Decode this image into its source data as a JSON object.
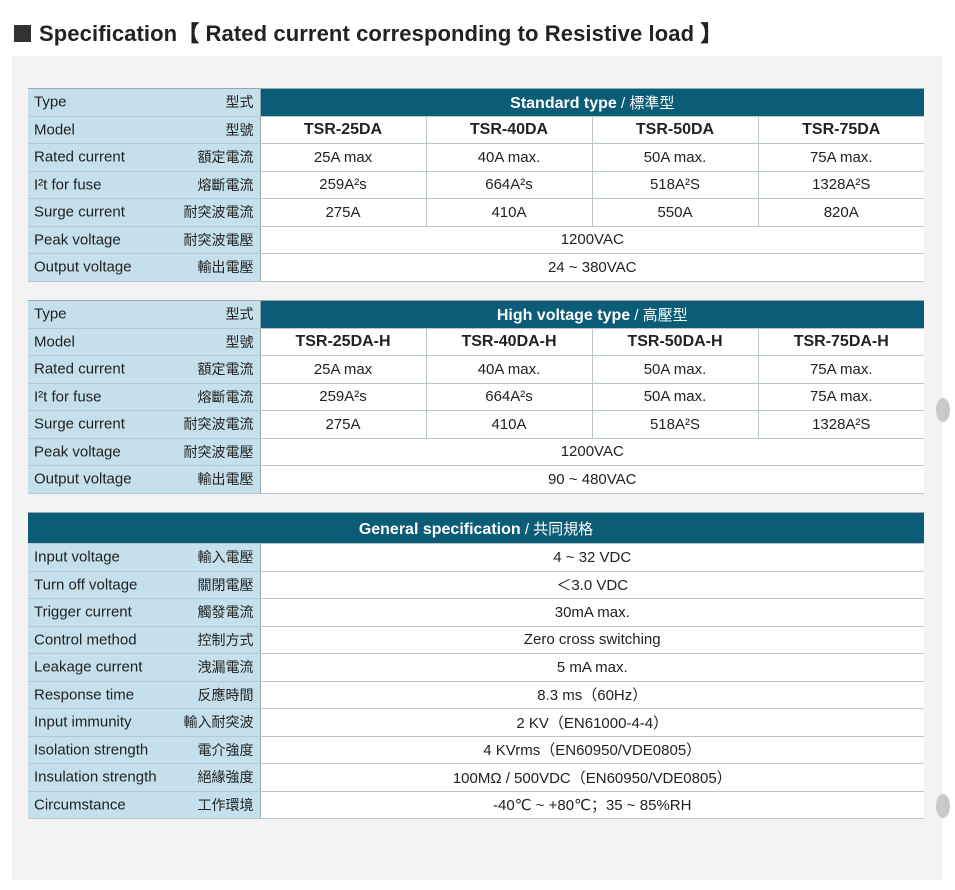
{
  "heading": "Specification【 Rated current corresponding to Resistive load 】",
  "standard": {
    "type_en": "Type",
    "type_zh": "型式",
    "title_en": "Standard type",
    "title_zh": " / 標準型",
    "model_en": "Model",
    "model_zh": "型號",
    "models": [
      "TSR-25DA",
      "TSR-40DA",
      "TSR-50DA",
      "TSR-75DA"
    ],
    "rows": [
      {
        "en": "Rated current",
        "zh": "額定電流",
        "values": [
          "25A max",
          "40A max.",
          "50A max.",
          "75A max."
        ]
      },
      {
        "en": "I²t for fuse",
        "zh": "熔斷電流",
        "values": [
          "259A²s",
          "664A²s",
          "518A²S",
          "1328A²S"
        ]
      },
      {
        "en": "Surge current",
        "zh": "耐突波電流",
        "values": [
          "275A",
          "410A",
          "550A",
          "820A"
        ]
      }
    ],
    "peak": {
      "en": "Peak voltage",
      "zh": "耐突波電壓",
      "value": "1200VAC"
    },
    "output": {
      "en": "Output voltage",
      "zh": "輸出電壓",
      "value": "24 ~ 380VAC"
    }
  },
  "high": {
    "type_en": "Type",
    "type_zh": "型式",
    "title_en": "High voltage type",
    "title_zh": " / 高壓型",
    "model_en": "Model",
    "model_zh": "型號",
    "models": [
      "TSR-25DA-H",
      "TSR-40DA-H",
      "TSR-50DA-H",
      "TSR-75DA-H"
    ],
    "rows": [
      {
        "en": "Rated current",
        "zh": "額定電流",
        "values": [
          "25A max",
          "40A max.",
          "50A max.",
          "75A max."
        ]
      },
      {
        "en": "I²t for fuse",
        "zh": "熔斷電流",
        "values": [
          "259A²s",
          "664A²s",
          "50A max.",
          "75A max."
        ]
      },
      {
        "en": "Surge current",
        "zh": "耐突波電流",
        "values": [
          "275A",
          "410A",
          "518A²S",
          "1328A²S"
        ]
      }
    ],
    "peak": {
      "en": "Peak voltage",
      "zh": "耐突波電壓",
      "value": "1200VAC"
    },
    "output": {
      "en": "Output voltage",
      "zh": "輸出電壓",
      "value": "90 ~ 480VAC"
    }
  },
  "general": {
    "title_en": "General specification",
    "title_zh": " / 共同規格",
    "rows": [
      {
        "en": "Input voltage",
        "zh": "輸入電壓",
        "value": "4 ~ 32 VDC"
      },
      {
        "en": "Turn off voltage",
        "zh": "關閉電壓",
        "value": "＜3.0 VDC"
      },
      {
        "en": "Trigger current",
        "zh": "觸發電流",
        "value": "30mA max."
      },
      {
        "en": "Control method",
        "zh": "控制方式",
        "value": "Zero cross switching"
      },
      {
        "en": "Leakage current",
        "zh": "洩漏電流",
        "value": "5 mA max."
      },
      {
        "en": "Response time",
        "zh": "反應時間",
        "value": "8.3 ms（60Hz）"
      },
      {
        "en": "Input immunity",
        "zh": "輸入耐突波",
        "value": "2 KV（EN61000-4-4）"
      },
      {
        "en": "Isolation strength",
        "zh": "電介強度",
        "value": "4 KVrms（EN60950/VDE0805）"
      },
      {
        "en": "Insulation strength",
        "zh": "絕緣強度",
        "value": "100MΩ / 500VDC（EN60950/VDE0805）"
      },
      {
        "en": "Circumstance",
        "zh": "工作環境",
        "value": "-40℃ ~ +80℃；35 ~ 85%RH"
      }
    ]
  }
}
